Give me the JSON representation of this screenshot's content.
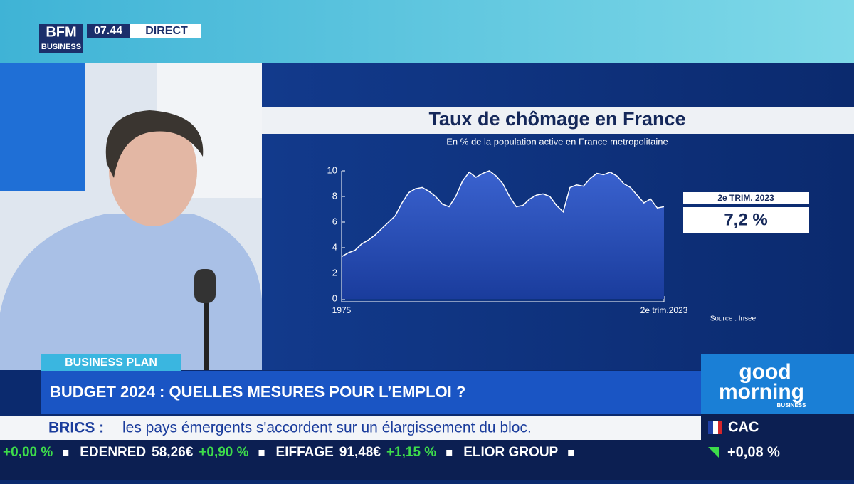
{
  "header": {
    "logo_top": "BFM",
    "logo_bottom": "BUSINESS",
    "time": "07.44",
    "live": "DIRECT"
  },
  "chart_data": {
    "type": "area",
    "title": "Taux de chômage en France",
    "subtitle": "En % de la population active en France metropolitaine",
    "categories": [
      "1975",
      null,
      null,
      null,
      null,
      null,
      null,
      null,
      null,
      null,
      null,
      null,
      null,
      null,
      null,
      null,
      null,
      null,
      null,
      null,
      null,
      null,
      null,
      null,
      null,
      null,
      null,
      null,
      null,
      null,
      null,
      null,
      null,
      null,
      null,
      null,
      null,
      null,
      null,
      null,
      null,
      null,
      null,
      null,
      null,
      null,
      null,
      null,
      "2e trim.2023"
    ],
    "values": [
      3.3,
      3.6,
      3.8,
      4.3,
      4.6,
      5.0,
      5.5,
      6.0,
      6.5,
      7.5,
      8.3,
      8.6,
      8.7,
      8.4,
      8.0,
      7.4,
      7.2,
      8.0,
      9.2,
      9.9,
      9.5,
      9.8,
      10.0,
      9.6,
      9.0,
      8.0,
      7.2,
      7.3,
      7.8,
      8.1,
      8.2,
      8.0,
      7.3,
      6.8,
      8.7,
      8.9,
      8.8,
      9.4,
      9.8,
      9.7,
      9.9,
      9.6,
      9.0,
      8.7,
      8.1,
      7.5,
      7.8,
      7.1,
      7.2
    ],
    "color": "#2a4fb8",
    "ylim": [
      0,
      10
    ],
    "yticks": [
      0,
      2,
      4,
      6,
      8,
      10
    ],
    "grid": false,
    "callout": {
      "label": "2e TRIM. 2023",
      "value": "7,2 %"
    },
    "source": "Source : Insee"
  },
  "lower_third": {
    "tag": "BUSINESS PLAN",
    "headline": "BUDGET 2024 : QUELLES MESURES POUR L’EMPLOI ?",
    "news_topic": "BRICS :",
    "news_text": "les pays émergents s'accordent sur un élargissement du bloc."
  },
  "ticker": [
    {
      "change": "+0,00 %"
    },
    {
      "name": "EDENRED",
      "price": "58,26€",
      "change": "+0,90 %"
    },
    {
      "name": "EIFFAGE",
      "price": "91,48€",
      "change": "+1,15 %"
    },
    {
      "name": "ELIOR GROUP"
    }
  ],
  "brand": {
    "line1": "good",
    "line2": "morning",
    "line3": "BUSINESS"
  },
  "market": {
    "index": "CAC",
    "change": "+0,08 %"
  }
}
